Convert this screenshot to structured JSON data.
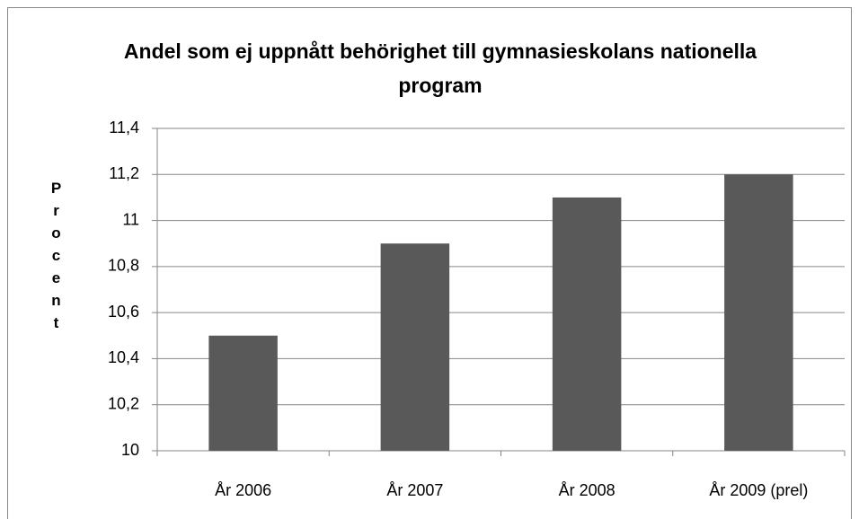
{
  "chart_data": {
    "type": "bar",
    "title": "Andel som ej uppnått behörighet till gymnasieskolans nationella program",
    "y_label": "Procent",
    "categories": [
      "År 2006",
      "År 2007",
      "År 2008",
      "År 2009 (prel)"
    ],
    "values": [
      10.5,
      10.9,
      11.1,
      11.2
    ],
    "color": "#595959",
    "ylim": [
      10,
      11.4
    ],
    "yticks": [
      10,
      {
        "value": 10.2,
        "label": "10,2"
      },
      {
        "value": 10.4,
        "label": "10,4"
      },
      {
        "value": 10.6,
        "label": "10,6"
      },
      {
        "value": 10.8,
        "label": "10,8"
      },
      11,
      {
        "value": 11.2,
        "label": "11,2"
      },
      {
        "value": 11.4,
        "label": "11,4"
      }
    ],
    "grid": true
  }
}
